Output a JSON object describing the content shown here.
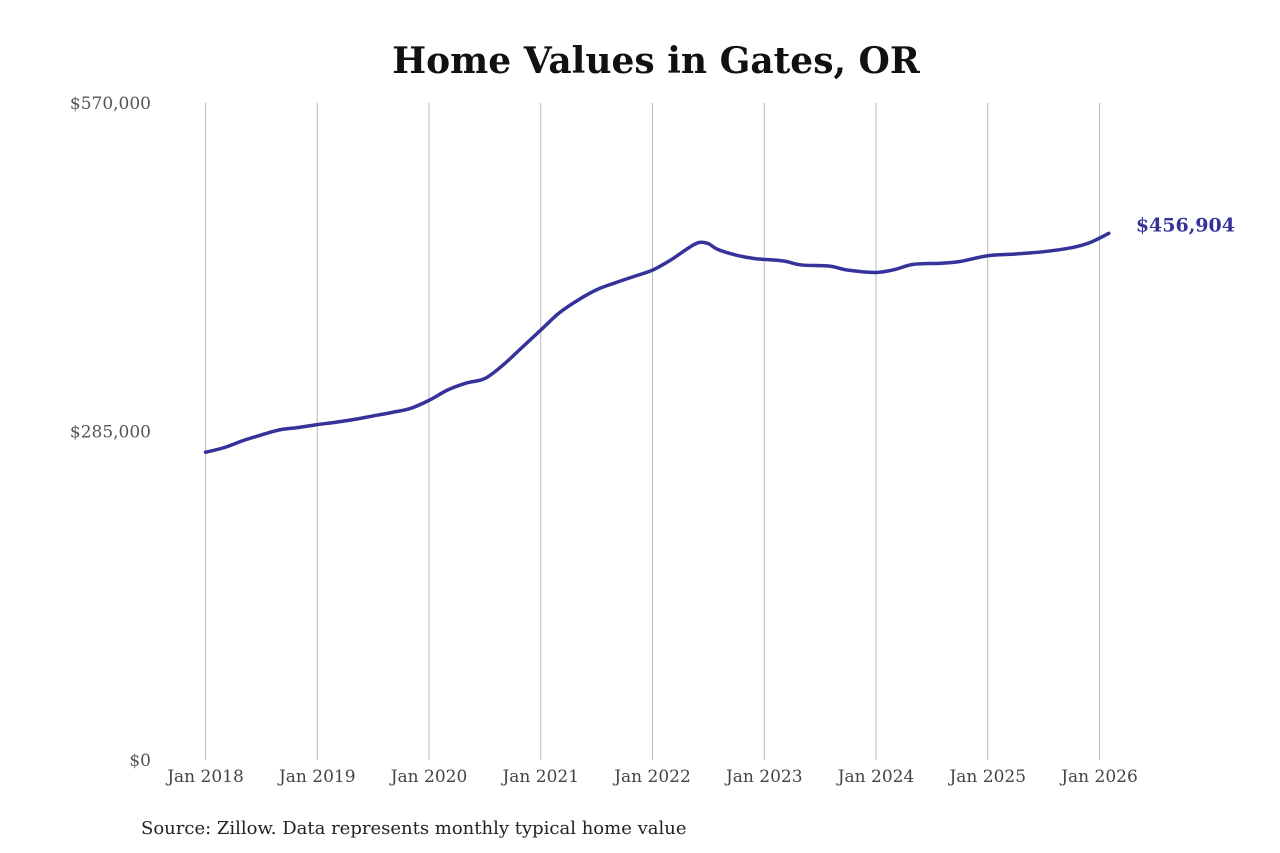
{
  "chart_data": {
    "type": "line",
    "title": "Home Values in Gates, OR",
    "xlabel": "",
    "ylabel": "",
    "ylim": [
      0,
      570000
    ],
    "yticks": [
      {
        "value": 0,
        "label": "$0"
      },
      {
        "value": 285000,
        "label": "$285,000"
      },
      {
        "value": 570000,
        "label": "$570,000"
      }
    ],
    "xlim": [
      "2018-01",
      "2026-02"
    ],
    "xticks": [
      "Jan 2018",
      "Jan 2019",
      "Jan 2020",
      "Jan 2021",
      "Jan 2022",
      "Jan 2023",
      "Jan 2024",
      "Jan 2025",
      "Jan 2026"
    ],
    "grid": "vertical",
    "legend": "none",
    "series": [
      {
        "color": "#35339a",
        "points": [
          [
            "2018-01",
            267000
          ],
          [
            "2018-03",
            271000
          ],
          [
            "2018-05",
            277000
          ],
          [
            "2018-07",
            282000
          ],
          [
            "2018-09",
            286500
          ],
          [
            "2018-11",
            288500
          ],
          [
            "2019-01",
            291000
          ],
          [
            "2019-03",
            293000
          ],
          [
            "2019-05",
            295500
          ],
          [
            "2019-07",
            298500
          ],
          [
            "2019-09",
            301500
          ],
          [
            "2019-11",
            305000
          ],
          [
            "2020-01",
            312000
          ],
          [
            "2020-03",
            321000
          ],
          [
            "2020-05",
            327000
          ],
          [
            "2020-07",
            331000
          ],
          [
            "2020-09",
            343000
          ],
          [
            "2020-11",
            358000
          ],
          [
            "2021-01",
            373000
          ],
          [
            "2021-03",
            388000
          ],
          [
            "2021-05",
            399000
          ],
          [
            "2021-07",
            408000
          ],
          [
            "2021-09",
            414000
          ],
          [
            "2021-11",
            419500
          ],
          [
            "2022-01",
            425000
          ],
          [
            "2022-03",
            434000
          ],
          [
            "2022-05",
            445000
          ],
          [
            "2022-06",
            449000
          ],
          [
            "2022-07",
            448000
          ],
          [
            "2022-08",
            443000
          ],
          [
            "2022-10",
            438000
          ],
          [
            "2022-12",
            435000
          ],
          [
            "2023-03",
            433000
          ],
          [
            "2023-05",
            429500
          ],
          [
            "2023-08",
            428500
          ],
          [
            "2023-10",
            425000
          ],
          [
            "2024-01",
            423000
          ],
          [
            "2024-03",
            425500
          ],
          [
            "2024-05",
            430000
          ],
          [
            "2024-08",
            431000
          ],
          [
            "2024-10",
            432500
          ],
          [
            "2025-01",
            437500
          ],
          [
            "2025-04",
            439000
          ],
          [
            "2025-07",
            441000
          ],
          [
            "2025-10",
            444500
          ],
          [
            "2025-12",
            449000
          ],
          [
            "2026-02",
            456904
          ]
        ]
      }
    ],
    "end_label": "$456,904",
    "source": "Source: Zillow. Data represents monthly typical home value"
  }
}
